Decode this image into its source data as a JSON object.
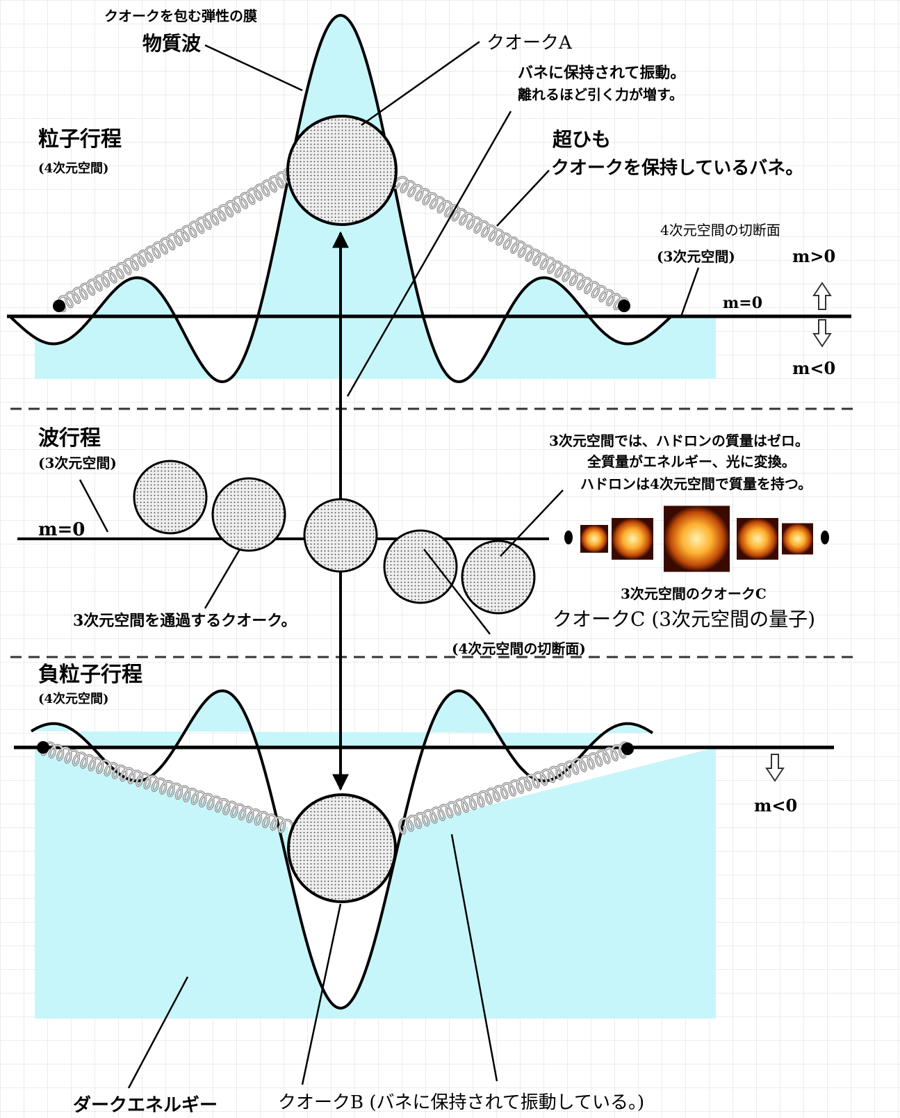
{
  "membrane_label": "クオークを包む弾性の膜",
  "matter_wave": "物質波",
  "quark_a": "クオークA",
  "spring_note": [
    "バネに保持されて振動。",
    "離れるほど引く力が増す。"
  ],
  "particle_process": {
    "title": "粒子行程",
    "space": "(4次元空間)"
  },
  "superstring": {
    "title": "超ひも",
    "description": "クオークを保持しているバネ。"
  },
  "cross_section": {
    "title": "4次元空間の切断面",
    "space": "(3次元空間)"
  },
  "mass_labels": {
    "positive": "m>0",
    "zero_top": "m=0",
    "negative_top": "m<0",
    "zero_wave": "m=0",
    "negative_bottom": "m<0"
  },
  "wave_process": {
    "title": "波行程",
    "space": "(3次元空間)"
  },
  "hadron_note": [
    "3次元空間では、ハドロンの質量はゼロ。",
    "全質量がエネルギー、光に変換。",
    "ハドロンは4次元空間で質量を持つ。"
  ],
  "quark_c_caption": "3次元空間のクオークC",
  "quark_c": "クオークC (3次元空間の量子)",
  "passing_quark": "3次元空間を通過するクオーク。",
  "cross_section_4d": "(4次元空間の切断面)",
  "antiparticle_process": {
    "title": "負粒子行程",
    "space": "(4次元空間)"
  },
  "dark_energy": "ダークエネルギー",
  "quark_b": "クオークB (バネに保持されて振動している。)"
}
